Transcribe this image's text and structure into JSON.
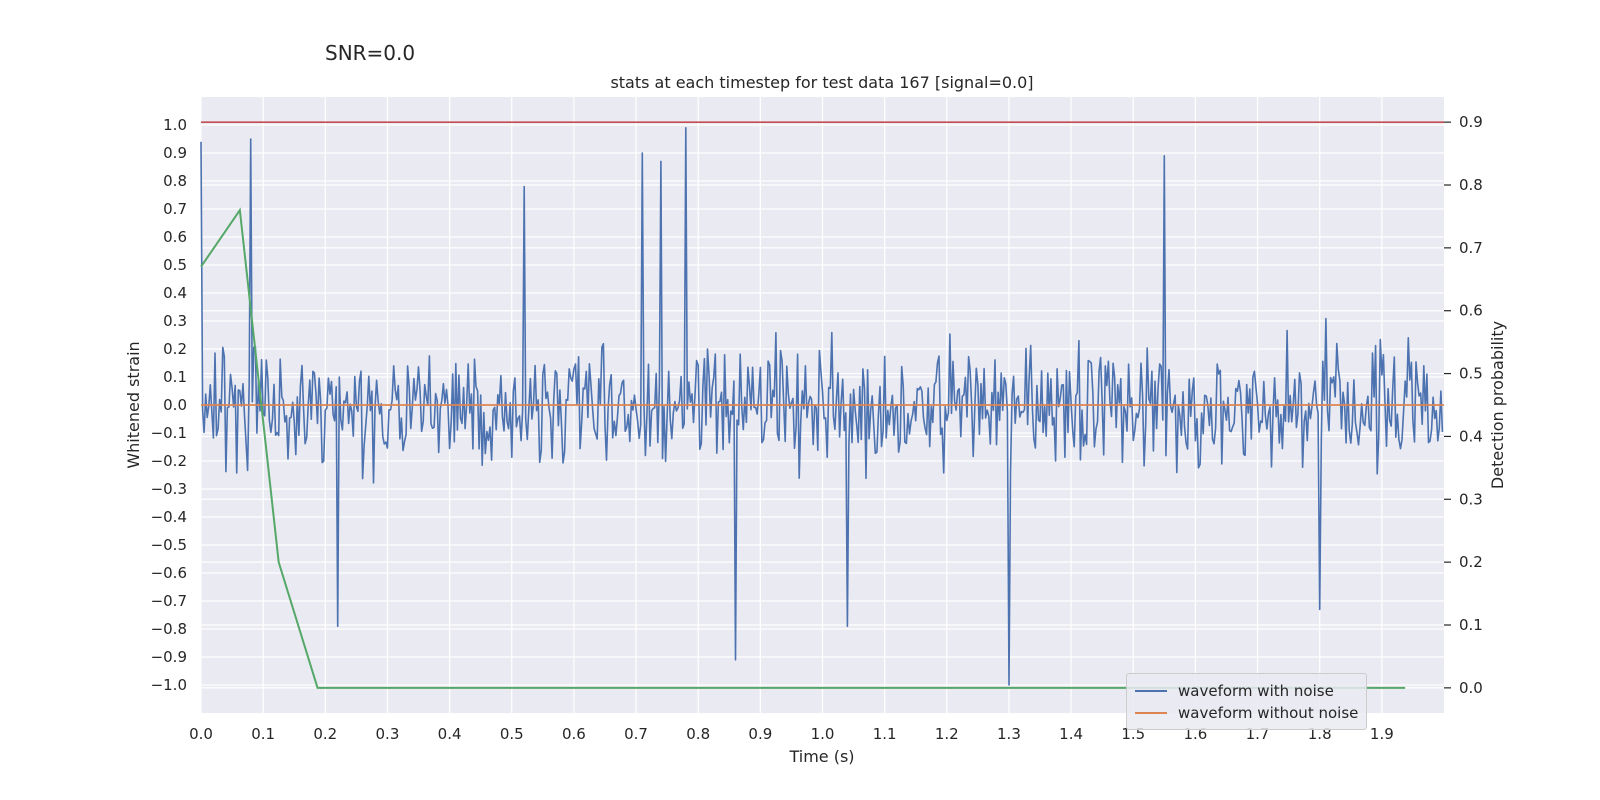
{
  "figure": {
    "suptitle": "SNR=0.0"
  },
  "chart_data": {
    "type": "line",
    "title": "stats at each timestep for test data 167 [signal=0.0]",
    "xlabel": "Time (s)",
    "ylabel": "Whitened strain",
    "y2label": "Detection probability",
    "xlim": [
      0.0,
      2.0
    ],
    "ylim": [
      -1.1,
      1.1
    ],
    "y2lim": [
      -0.04,
      0.94
    ],
    "x_ticks": [
      "0.0",
      "0.1",
      "0.2",
      "0.3",
      "0.4",
      "0.5",
      "0.6",
      "0.7",
      "0.8",
      "0.9",
      "1.0",
      "1.1",
      "1.2",
      "1.3",
      "1.4",
      "1.5",
      "1.6",
      "1.7",
      "1.8",
      "1.9"
    ],
    "y_ticks": [
      "1.0",
      "0.9",
      "0.8",
      "0.7",
      "0.6",
      "0.5",
      "0.4",
      "0.3",
      "0.2",
      "0.1",
      "0.0",
      "−0.1",
      "−0.2",
      "−0.3",
      "−0.4",
      "−0.5",
      "−0.6",
      "−0.7",
      "−0.8",
      "−0.9",
      "−1.0"
    ],
    "y2_ticks": [
      "0.9",
      "0.8",
      "0.7",
      "0.6",
      "0.5",
      "0.4",
      "0.3",
      "0.2",
      "0.1",
      "0.0"
    ],
    "grid": true,
    "legend_position": "bottom-right",
    "colors": {
      "noisy": "#4c72b0",
      "clean": "#dd8452",
      "probability": "#55a868",
      "threshold": "#c44e52",
      "background": "#eaeaf2",
      "grid": "#ffffff"
    },
    "series": [
      {
        "name": "waveform with noise",
        "key": "noisy",
        "x_start": 0.0,
        "x_step": 0.0025,
        "note_count": 800,
        "seed": 167,
        "spikes": [
          {
            "x": 0.0,
            "y": 0.94
          },
          {
            "x": 0.08,
            "y": 0.95
          },
          {
            "x": 0.22,
            "y": -0.79
          },
          {
            "x": 0.52,
            "y": 0.78
          },
          {
            "x": 0.71,
            "y": 0.9
          },
          {
            "x": 0.74,
            "y": 0.87
          },
          {
            "x": 0.78,
            "y": 0.99
          },
          {
            "x": 0.86,
            "y": -0.91
          },
          {
            "x": 1.04,
            "y": -0.79
          },
          {
            "x": 1.3,
            "y": -1.0
          },
          {
            "x": 1.55,
            "y": 0.89
          },
          {
            "x": 1.8,
            "y": -0.73
          }
        ]
      },
      {
        "name": "waveform without noise",
        "key": "clean",
        "x": [
          0.0,
          2.0
        ],
        "y": [
          0.0,
          0.0
        ]
      },
      {
        "name": "",
        "key": "probability",
        "axis": "right",
        "x": [
          0.0,
          0.0625,
          0.125,
          0.1875,
          0.25,
          0.3125,
          1.9375
        ],
        "y": [
          0.67,
          0.76,
          0.2,
          0.0,
          0.0,
          0.0,
          0.0
        ]
      },
      {
        "name": "",
        "key": "threshold",
        "axis": "right",
        "x": [
          0.0,
          2.0
        ],
        "y": [
          0.9,
          0.9
        ]
      }
    ]
  }
}
